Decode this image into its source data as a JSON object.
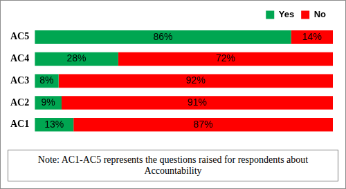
{
  "chart_data": {
    "type": "bar",
    "orientation": "horizontal",
    "stacked": true,
    "categories": [
      "AC5",
      "AC4",
      "AC3",
      "AC2",
      "AC1"
    ],
    "series": [
      {
        "name": "Yes",
        "color": "#00a651",
        "values": [
          86,
          28,
          8,
          9,
          13
        ],
        "value_labels": [
          "86%",
          "28%",
          "8%",
          "9%",
          "13%"
        ]
      },
      {
        "name": "No",
        "color": "#ff0000",
        "values": [
          14,
          72,
          92,
          91,
          87
        ],
        "value_labels": [
          "14%",
          "72%",
          "92%",
          "91%",
          "87%"
        ]
      }
    ],
    "xlim": [
      0,
      100
    ],
    "tick_labels": "y",
    "grid": false,
    "legend": "top-right",
    "data_labels": true,
    "annotations": [
      "Note: AC1-AC5 represents the questions raised for respondents about Accountability"
    ]
  }
}
